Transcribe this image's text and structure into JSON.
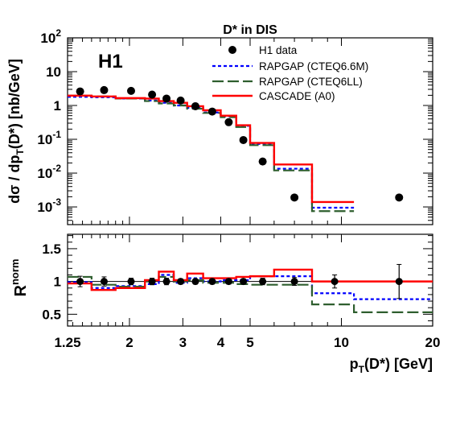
{
  "title": "D* in DIS",
  "experiment_label": "H1",
  "legend": [
    {
      "label": "H1 data",
      "color": "#000000",
      "style": "marker"
    },
    {
      "label": "RAPGAP (CTEQ6.6M)",
      "color": "#0000ff",
      "style": "dotted"
    },
    {
      "label": "RAPGAP (CTEQ6LL)",
      "color": "#2e5e2e",
      "style": "dashed"
    },
    {
      "label": "CASCADE (A0)",
      "color": "#ff0000",
      "style": "solid"
    }
  ],
  "chart_data": [
    {
      "type": "line",
      "panel": "top",
      "ylabel_main": "dσ / dp",
      "ylabel_sub": "T",
      "ylabel_rest": "(D*) [nb/GeV]",
      "yscale": "log",
      "ylim": [
        0.0003,
        100
      ],
      "xscale": "log",
      "xlim": [
        1.25,
        20
      ],
      "y_ticks": [
        {
          "value": 0.001,
          "base": "10",
          "exp": "-3"
        },
        {
          "value": 0.01,
          "base": "10",
          "exp": "-2"
        },
        {
          "value": 0.1,
          "base": "10",
          "exp": "-1"
        },
        {
          "value": 1,
          "base": "1",
          "exp": ""
        },
        {
          "value": 10,
          "base": "10",
          "exp": ""
        },
        {
          "value": 100,
          "base": "10",
          "exp": "2"
        }
      ],
      "bin_edges": [
        1.25,
        1.5,
        1.8,
        2.25,
        2.5,
        2.8,
        3.1,
        3.5,
        4.0,
        4.5,
        5.0,
        6.0,
        8.0,
        11.0,
        20.0
      ],
      "data_points": {
        "x": [
          1.375,
          1.65,
          2.025,
          2.375,
          2.65,
          2.95,
          3.3,
          3.75,
          4.25,
          4.75,
          5.5,
          7.0,
          9.5,
          15.5
        ],
        "y": [
          2.6,
          2.85,
          2.7,
          2.1,
          1.6,
          1.4,
          0.95,
          0.66,
          0.32,
          0.095,
          0.022,
          0.0019,
          null,
          null
        ]
      },
      "series": [
        {
          "name": "RAPGAP (CTEQ6.6M)",
          "values": [
            1.8,
            1.75,
            1.6,
            1.4,
            1.2,
            1.0,
            0.85,
            0.62,
            0.48,
            0.25,
            0.073,
            0.0135,
            0.00095,
            null
          ]
        },
        {
          "name": "RAPGAP (CTEQ6LL)",
          "values": [
            1.95,
            1.85,
            1.6,
            1.35,
            1.15,
            1.0,
            0.8,
            0.6,
            0.45,
            0.23,
            0.067,
            0.012,
            0.00075,
            null
          ]
        },
        {
          "name": "CASCADE (A0)",
          "values": [
            1.95,
            1.85,
            1.65,
            1.6,
            1.35,
            1.2,
            0.95,
            0.72,
            0.5,
            0.26,
            0.078,
            0.018,
            0.0014,
            null
          ]
        }
      ]
    },
    {
      "type": "line",
      "panel": "bottom",
      "ylabel_main": "R",
      "ylabel_sup": "norm",
      "ylim": [
        0.32,
        1.72
      ],
      "y_ticks": [
        0.5,
        1,
        1.5
      ],
      "y_tick_labels": [
        "0.5",
        "1",
        "1.5"
      ],
      "xlabel_main": "p",
      "xlabel_sub": "T",
      "xlabel_rest": "(D*) [GeV]",
      "x_ticks": [
        1.25,
        2,
        3,
        4,
        5,
        10,
        20
      ],
      "x_tick_labels": [
        "1.25",
        "2",
        "3",
        "4",
        "5",
        "10",
        "20"
      ],
      "data_points": {
        "x": [
          1.375,
          1.65,
          2.025,
          2.375,
          2.65,
          2.95,
          3.3,
          3.75,
          4.25,
          4.75,
          5.5,
          7.0,
          9.5,
          15.5
        ],
        "y": [
          1.0,
          1.0,
          1.0,
          1.0,
          1.0,
          1.0,
          1.0,
          1.0,
          1.0,
          1.0,
          1.0,
          1.0,
          1.0,
          1.0
        ],
        "err": [
          0.08,
          0.07,
          0.05,
          0.05,
          0.05,
          0.04,
          0.04,
          0.04,
          0.04,
          0.04,
          0.05,
          0.06,
          0.1,
          0.26
        ]
      },
      "series": [
        {
          "name": "RAPGAP (CTEQ6.6M)",
          "values": [
            0.99,
            0.9,
            0.93,
            0.96,
            1.1,
            0.98,
            1.05,
            1.0,
            1.02,
            1.02,
            1.08,
            1.08,
            0.82,
            0.73
          ]
        },
        {
          "name": "RAPGAP (CTEQ6LL)",
          "values": [
            1.07,
            0.95,
            0.92,
            1.0,
            1.07,
            1.0,
            1.02,
            0.98,
            0.98,
            0.96,
            0.95,
            0.95,
            0.65,
            0.53
          ]
        },
        {
          "name": "CASCADE (A0)",
          "values": [
            0.97,
            0.87,
            0.9,
            1.02,
            1.15,
            1.02,
            1.12,
            1.05,
            1.05,
            1.07,
            1.08,
            1.18,
            1.0,
            1.0
          ]
        }
      ]
    }
  ]
}
